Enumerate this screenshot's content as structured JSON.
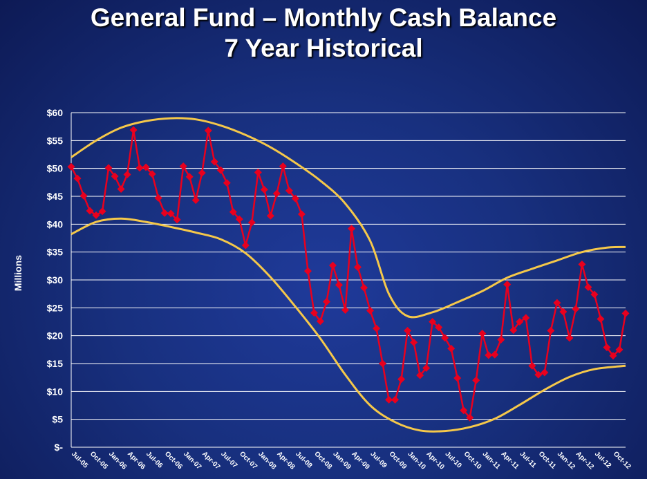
{
  "title": {
    "line1": "General Fund – Monthly Cash Balance",
    "line2": "7 Year Historical"
  },
  "colors": {
    "series": "#e8001e",
    "band": "#f5c84a",
    "grid": "#ffffff"
  },
  "chart_data": {
    "type": "line",
    "ylabel": "Millions",
    "ylim": [
      0,
      60
    ],
    "y_ticks": [
      {
        "value": 60,
        "label": "$60"
      },
      {
        "value": 55,
        "label": "$55"
      },
      {
        "value": 50,
        "label": "$50"
      },
      {
        "value": 45,
        "label": "$45"
      },
      {
        "value": 40,
        "label": "$40"
      },
      {
        "value": 35,
        "label": "$35"
      },
      {
        "value": 30,
        "label": "$30"
      },
      {
        "value": 25,
        "label": "$25"
      },
      {
        "value": 20,
        "label": "$20"
      },
      {
        "value": 15,
        "label": "$15"
      },
      {
        "value": 10,
        "label": "$10"
      },
      {
        "value": 5,
        "label": "$5"
      },
      {
        "value": 0,
        "label": "$-"
      }
    ],
    "x_tick_labels": [
      "Jul-05",
      "Oct-05",
      "Jan-06",
      "Apr-06",
      "Jul-06",
      "Oct-06",
      "Jan-07",
      "Apr-07",
      "Jul-07",
      "Oct-07",
      "Jan-08",
      "Apr-08",
      "Jul-08",
      "Oct-08",
      "Jan-09",
      "Apr-09",
      "Jul-09",
      "Oct-09",
      "Jan-10",
      "Apr-10",
      "Jul-10",
      "Oct-10",
      "Jan-11",
      "Apr-11",
      "Jul-11",
      "Oct-11",
      "Jan-12",
      "Apr-12",
      "Jul-12",
      "Oct-12"
    ],
    "grid": true,
    "series": [
      {
        "values": [
          50.3,
          48.2,
          45.1,
          42.4,
          41.6,
          42.3,
          50.1,
          48.6,
          46.3,
          48.9,
          56.9,
          50.1,
          50.2,
          49.0,
          44.7,
          42.0,
          41.9,
          40.8,
          50.4,
          48.5,
          44.3,
          49.2,
          56.8,
          51.2,
          49.7,
          47.4,
          42.2,
          40.9,
          36.2,
          40.3,
          49.3,
          46.2,
          41.5,
          45.5,
          50.4,
          46.0,
          44.6,
          41.8,
          31.6,
          24.1,
          22.6,
          26.1,
          32.6,
          29.1,
          24.6,
          39.2,
          32.3,
          28.6,
          24.5,
          21.3,
          15.0,
          8.5,
          8.5,
          12.2,
          20.9,
          18.8,
          12.9,
          14.2,
          22.5,
          21.5,
          19.6,
          17.7,
          12.4,
          6.6,
          5.3,
          12.0,
          20.4,
          16.5,
          16.6,
          19.3,
          29.2,
          21.0,
          22.5,
          23.2,
          14.6,
          13.0,
          13.4,
          20.9,
          25.9,
          24.3,
          19.6,
          24.8,
          32.8,
          28.7,
          27.4,
          23.0,
          17.9,
          16.4,
          17.5,
          24.0
        ]
      }
    ],
    "bands": [
      {
        "points": [
          [
            0,
            52.0
          ],
          [
            4,
            55.0
          ],
          [
            8,
            57.3
          ],
          [
            12,
            58.5
          ],
          [
            16,
            59.0
          ],
          [
            20,
            58.8
          ],
          [
            24,
            57.7
          ],
          [
            28,
            56.0
          ],
          [
            32,
            53.8
          ],
          [
            36,
            51.0
          ],
          [
            40,
            47.8
          ],
          [
            44,
            43.7
          ],
          [
            48,
            37.0
          ],
          [
            51,
            27.5
          ],
          [
            54,
            23.5
          ],
          [
            58,
            24.2
          ],
          [
            62,
            26.0
          ],
          [
            66,
            28.0
          ],
          [
            70,
            30.4
          ],
          [
            74,
            32.0
          ],
          [
            78,
            33.5
          ],
          [
            82,
            35.0
          ],
          [
            86,
            35.8
          ],
          [
            89,
            35.9
          ]
        ]
      },
      {
        "points": [
          [
            0,
            38.2
          ],
          [
            4,
            40.4
          ],
          [
            8,
            41.0
          ],
          [
            12,
            40.4
          ],
          [
            16,
            39.5
          ],
          [
            20,
            38.5
          ],
          [
            24,
            37.3
          ],
          [
            28,
            34.8
          ],
          [
            32,
            30.5
          ],
          [
            36,
            25.2
          ],
          [
            40,
            19.5
          ],
          [
            44,
            13.0
          ],
          [
            48,
            7.5
          ],
          [
            52,
            4.5
          ],
          [
            56,
            3.0
          ],
          [
            60,
            2.9
          ],
          [
            64,
            3.6
          ],
          [
            68,
            5.1
          ],
          [
            72,
            7.6
          ],
          [
            76,
            10.3
          ],
          [
            80,
            12.6
          ],
          [
            84,
            14.0
          ],
          [
            89,
            14.6
          ]
        ]
      }
    ]
  }
}
